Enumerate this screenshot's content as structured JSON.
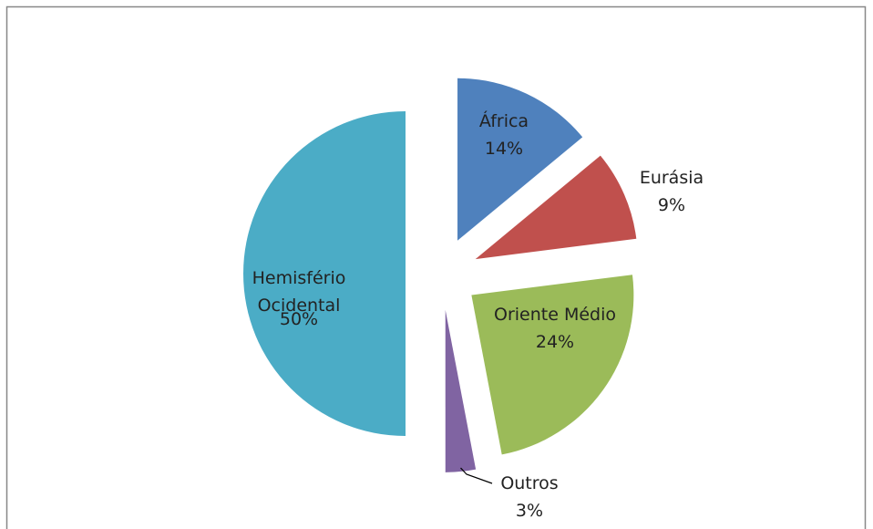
{
  "chart_data": {
    "type": "pie",
    "categories": [
      "África",
      "Eurásia",
      "Oriente Médio",
      "Outros",
      "Hemisfério Ocidental"
    ],
    "values": [
      14,
      9,
      24,
      3,
      50
    ],
    "value_labels": [
      "14%",
      "9%",
      "24%",
      "3%",
      "50%"
    ],
    "colors": [
      "#4f81bd",
      "#c0504d",
      "#9bbb59",
      "#8064a2",
      "#4bacc6"
    ]
  }
}
